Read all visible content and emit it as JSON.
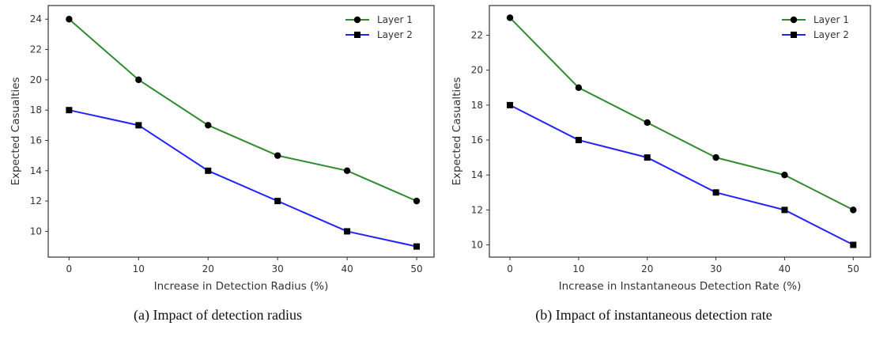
{
  "chart_data": [
    {
      "type": "line",
      "caption": "(a) Impact of detection radius",
      "xlabel": "Increase in Detection Radius (%)",
      "ylabel": "Expected Casualties",
      "x": [
        0,
        10,
        20,
        30,
        40,
        50
      ],
      "xticks": [
        "0",
        "10",
        "20",
        "30",
        "40",
        "50"
      ],
      "yticks": [
        10,
        12,
        14,
        16,
        18,
        20,
        22,
        24
      ],
      "xlim": [
        -3,
        52.5
      ],
      "ylim": [
        8.3,
        24.9
      ],
      "grid": false,
      "legend_position": "top-right",
      "series": [
        {
          "name": "Layer 1",
          "values": [
            24,
            20,
            17,
            15,
            14,
            12
          ],
          "color": "#2e8b2e",
          "marker": "circle"
        },
        {
          "name": "Layer 2",
          "values": [
            18,
            17,
            14,
            12,
            10,
            9
          ],
          "color": "#2323ff",
          "marker": "square"
        }
      ]
    },
    {
      "type": "line",
      "caption": "(b) Impact of instantaneous detection rate",
      "xlabel": "Increase in Instantaneous Detection Rate (%)",
      "ylabel": "Expected Casualties",
      "x": [
        0,
        10,
        20,
        30,
        40,
        50
      ],
      "xticks": [
        "0",
        "10",
        "20",
        "30",
        "40",
        "50"
      ],
      "yticks": [
        10,
        12,
        14,
        16,
        18,
        20,
        22
      ],
      "xlim": [
        -3,
        52.5
      ],
      "ylim": [
        9.3,
        23.7
      ],
      "grid": false,
      "legend_position": "top-right",
      "series": [
        {
          "name": "Layer 1",
          "values": [
            23,
            19,
            17,
            15,
            14,
            12
          ],
          "color": "#2e8b2e",
          "marker": "circle"
        },
        {
          "name": "Layer 2",
          "values": [
            18,
            16,
            15,
            13,
            12,
            10
          ],
          "color": "#2323ff",
          "marker": "square"
        }
      ]
    }
  ]
}
